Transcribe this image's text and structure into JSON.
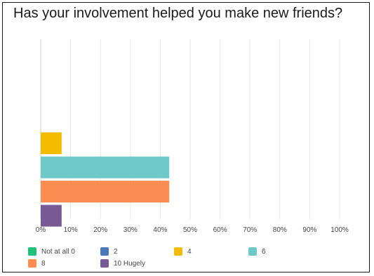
{
  "chart_data": {
    "type": "bar",
    "orientation": "horizontal",
    "title": "Has your involvement helped you make new friends?",
    "series": [
      {
        "name": "Not at all 0",
        "value": 0,
        "color": "#21c17a"
      },
      {
        "name": "2",
        "value": 0,
        "color": "#4a78b8"
      },
      {
        "name": "4",
        "value": 7,
        "color": "#f5bb00"
      },
      {
        "name": "6",
        "value": 43,
        "color": "#6fc9c9"
      },
      {
        "name": "8",
        "value": 43,
        "color": "#fb8c52"
      },
      {
        "name": "10 Hugely",
        "value": 7,
        "color": "#7a5a94"
      }
    ],
    "xlim": [
      0,
      100
    ],
    "xticks": [
      "0%",
      "10%",
      "20%",
      "30%",
      "40%",
      "50%",
      "60%",
      "70%",
      "80%",
      "90%",
      "100%"
    ],
    "grid": true,
    "legend_position": "bottom"
  }
}
